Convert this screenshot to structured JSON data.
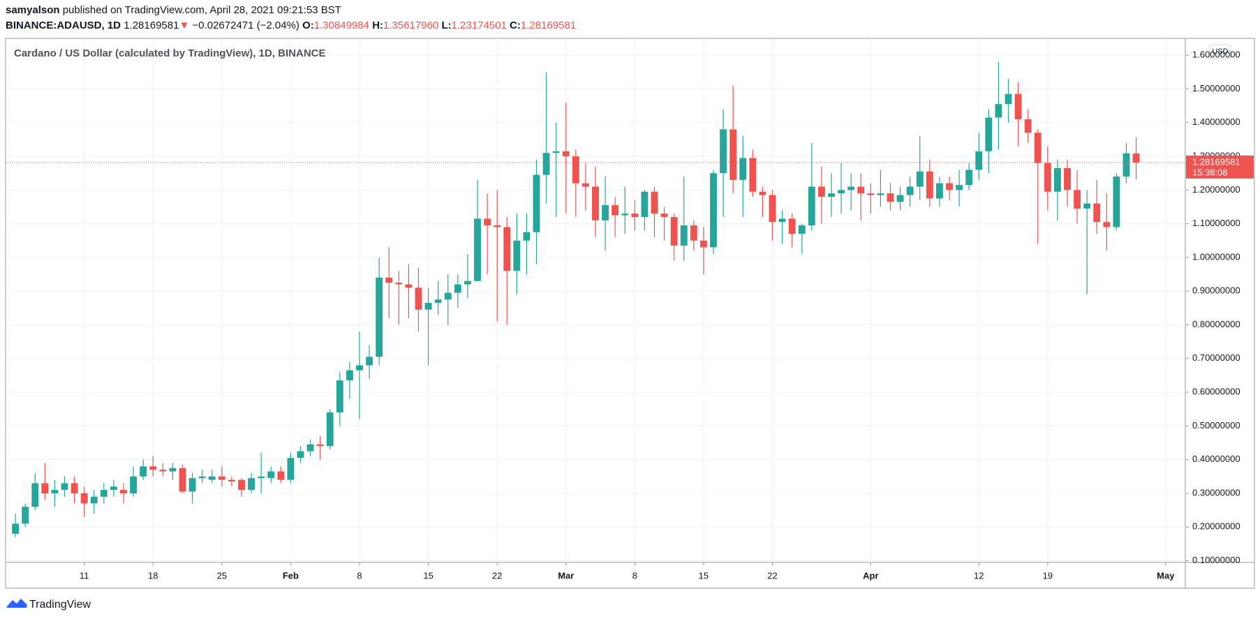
{
  "header": {
    "author": "samyalson",
    "published": "published on TradingView.com, April 28, 2021 09:21:53 BST",
    "symbol": "BINANCE:ADAUSD, 1D",
    "arrow": "▼",
    "change": "−0.02672471 (−2.04%)",
    "ohlc": [
      {
        "key": "O:",
        "value": "1.30849984"
      },
      {
        "key": "H:",
        "value": "1.35617960"
      },
      {
        "key": "L:",
        "value": "1.23174501"
      },
      {
        "key": "C:",
        "value": "1.28169581"
      }
    ]
  },
  "chart_data": {
    "type": "candlestick",
    "title": "Cardano / US Dollar (calculated by TradingView), 1D, BINANCE",
    "currency": "USD",
    "countdown": "15:38:08",
    "up_color": "#26a69a",
    "down_color": "#ef5350",
    "grid": true,
    "x": [
      "2021-01-04",
      "2021-01-05",
      "2021-01-06",
      "2021-01-07",
      "2021-01-08",
      "2021-01-09",
      "2021-01-10",
      "2021-01-11",
      "2021-01-12",
      "2021-01-13",
      "2021-01-14",
      "2021-01-15",
      "2021-01-16",
      "2021-01-17",
      "2021-01-18",
      "2021-01-19",
      "2021-01-20",
      "2021-01-21",
      "2021-01-22",
      "2021-01-23",
      "2021-01-24",
      "2021-01-25",
      "2021-01-26",
      "2021-01-27",
      "2021-01-28",
      "2021-01-29",
      "2021-01-30",
      "2021-01-31",
      "2021-02-01",
      "2021-02-02",
      "2021-02-03",
      "2021-02-04",
      "2021-02-05",
      "2021-02-06",
      "2021-02-07",
      "2021-02-08",
      "2021-02-09",
      "2021-02-10",
      "2021-02-11",
      "2021-02-12",
      "2021-02-13",
      "2021-02-14",
      "2021-02-15",
      "2021-02-16",
      "2021-02-17",
      "2021-02-18",
      "2021-02-19",
      "2021-02-20",
      "2021-02-21",
      "2021-02-22",
      "2021-02-23",
      "2021-02-24",
      "2021-02-25",
      "2021-02-26",
      "2021-02-27",
      "2021-02-28",
      "2021-03-01",
      "2021-03-02",
      "2021-03-03",
      "2021-03-04",
      "2021-03-05",
      "2021-03-06",
      "2021-03-07",
      "2021-03-08",
      "2021-03-09",
      "2021-03-10",
      "2021-03-11",
      "2021-03-12",
      "2021-03-13",
      "2021-03-14",
      "2021-03-15",
      "2021-03-16",
      "2021-03-17",
      "2021-03-18",
      "2021-03-19",
      "2021-03-20",
      "2021-03-21",
      "2021-03-22",
      "2021-03-23",
      "2021-03-24",
      "2021-03-25",
      "2021-03-26",
      "2021-03-27",
      "2021-03-28",
      "2021-03-29",
      "2021-03-30",
      "2021-03-31",
      "2021-04-01",
      "2021-04-02",
      "2021-04-03",
      "2021-04-04",
      "2021-04-05",
      "2021-04-06",
      "2021-04-07",
      "2021-04-08",
      "2021-04-09",
      "2021-04-10",
      "2021-04-11",
      "2021-04-12",
      "2021-04-13",
      "2021-04-14",
      "2021-04-15",
      "2021-04-16",
      "2021-04-17",
      "2021-04-18",
      "2021-04-19",
      "2021-04-20",
      "2021-04-21",
      "2021-04-22",
      "2021-04-23",
      "2021-04-24",
      "2021-04-25",
      "2021-04-26",
      "2021-04-27",
      "2021-04-28"
    ],
    "open": [
      0.18,
      0.21,
      0.26,
      0.33,
      0.3,
      0.31,
      0.33,
      0.3,
      0.27,
      0.29,
      0.31,
      0.31,
      0.3,
      0.35,
      0.38,
      0.37,
      0.365,
      0.375,
      0.305,
      0.345,
      0.34,
      0.35,
      0.34,
      0.34,
      0.31,
      0.345,
      0.345,
      0.365,
      0.34,
      0.405,
      0.425,
      0.445,
      0.44,
      0.54,
      0.635,
      0.665,
      0.68,
      0.705,
      0.94,
      0.925,
      0.92,
      0.91,
      0.845,
      0.865,
      0.875,
      0.895,
      0.92,
      0.93,
      1.115,
      1.095,
      1.09,
      0.96,
      1.05,
      1.075,
      1.245,
      1.31,
      1.315,
      1.3,
      1.22,
      1.21,
      1.11,
      1.155,
      1.125,
      1.13,
      1.12,
      1.195,
      1.13,
      1.12,
      1.035,
      1.095,
      1.05,
      1.03,
      1.25,
      1.38,
      1.23,
      1.295,
      1.195,
      1.185,
      1.105,
      1.115,
      1.07,
      1.095,
      1.21,
      1.18,
      1.19,
      1.2,
      1.21,
      1.19,
      1.185,
      1.19,
      1.165,
      1.185,
      1.21,
      1.255,
      1.175,
      1.22,
      1.2,
      1.215,
      1.26,
      1.315,
      1.415,
      1.455,
      1.485,
      1.41,
      1.37,
      1.28,
      1.195,
      1.265,
      1.2,
      1.145,
      1.16,
      1.105,
      1.09,
      1.24,
      1.30849984
    ],
    "high": [
      0.24,
      0.27,
      0.36,
      0.39,
      0.34,
      0.35,
      0.35,
      0.32,
      0.31,
      0.33,
      0.34,
      0.33,
      0.38,
      0.4,
      0.41,
      0.39,
      0.39,
      0.385,
      0.36,
      0.37,
      0.37,
      0.38,
      0.35,
      0.345,
      0.36,
      0.42,
      0.38,
      0.38,
      0.42,
      0.44,
      0.46,
      0.47,
      0.55,
      0.66,
      0.69,
      0.78,
      0.74,
      1.0,
      1.03,
      0.96,
      0.98,
      0.97,
      0.91,
      0.93,
      0.95,
      0.95,
      1.01,
      1.23,
      1.19,
      1.2,
      1.12,
      1.13,
      1.13,
      1.29,
      1.55,
      1.4,
      1.46,
      1.32,
      1.28,
      1.27,
      1.24,
      1.18,
      1.21,
      1.17,
      1.2,
      1.21,
      1.15,
      1.13,
      1.24,
      1.11,
      1.09,
      1.26,
      1.44,
      1.51,
      1.36,
      1.32,
      1.21,
      1.2,
      1.14,
      1.13,
      1.1,
      1.34,
      1.27,
      1.25,
      1.28,
      1.25,
      1.25,
      1.22,
      1.26,
      1.22,
      1.21,
      1.24,
      1.36,
      1.29,
      1.24,
      1.24,
      1.26,
      1.28,
      1.37,
      1.44,
      1.58,
      1.53,
      1.52,
      1.44,
      1.38,
      1.33,
      1.29,
      1.29,
      1.26,
      1.2,
      1.23,
      1.19,
      1.25,
      1.34,
      1.3561796
    ],
    "low": [
      0.17,
      0.2,
      0.25,
      0.28,
      0.26,
      0.29,
      0.27,
      0.23,
      0.24,
      0.27,
      0.29,
      0.27,
      0.29,
      0.34,
      0.35,
      0.35,
      0.34,
      0.3,
      0.27,
      0.33,
      0.33,
      0.32,
      0.32,
      0.29,
      0.3,
      0.3,
      0.33,
      0.33,
      0.33,
      0.39,
      0.41,
      0.4,
      0.43,
      0.5,
      0.58,
      0.52,
      0.64,
      0.68,
      0.82,
      0.8,
      0.82,
      0.78,
      0.68,
      0.83,
      0.8,
      0.85,
      0.88,
      0.93,
      0.95,
      0.81,
      0.8,
      0.89,
      0.95,
      0.98,
      1.16,
      1.12,
      1.13,
      1.12,
      1.14,
      1.06,
      1.02,
      1.06,
      1.07,
      1.08,
      1.08,
      1.06,
      1.05,
      0.99,
      0.99,
      1.02,
      0.95,
      1.01,
      1.12,
      1.19,
      1.12,
      1.18,
      1.12,
      1.05,
      1.04,
      1.03,
      1.01,
      1.08,
      1.1,
      1.12,
      1.13,
      1.14,
      1.11,
      1.13,
      1.15,
      1.14,
      1.14,
      1.15,
      1.17,
      1.15,
      1.15,
      1.17,
      1.15,
      1.2,
      1.23,
      1.25,
      1.32,
      1.4,
      1.33,
      1.34,
      1.04,
      1.14,
      1.11,
      1.15,
      1.1,
      0.89,
      1.07,
      1.02,
      1.08,
      1.22,
      1.23174501
    ],
    "close": [
      0.21,
      0.26,
      0.33,
      0.3,
      0.31,
      0.33,
      0.3,
      0.27,
      0.29,
      0.31,
      0.32,
      0.3,
      0.35,
      0.38,
      0.37,
      0.365,
      0.375,
      0.305,
      0.345,
      0.35,
      0.35,
      0.34,
      0.335,
      0.31,
      0.345,
      0.35,
      0.365,
      0.34,
      0.405,
      0.425,
      0.445,
      0.44,
      0.54,
      0.635,
      0.665,
      0.68,
      0.705,
      0.94,
      0.925,
      0.92,
      0.91,
      0.845,
      0.865,
      0.875,
      0.895,
      0.92,
      0.93,
      1.115,
      1.095,
      1.09,
      0.96,
      1.05,
      1.075,
      1.245,
      1.31,
      1.315,
      1.3,
      1.22,
      1.21,
      1.11,
      1.155,
      1.125,
      1.13,
      1.12,
      1.195,
      1.13,
      1.12,
      1.035,
      1.095,
      1.05,
      1.03,
      1.25,
      1.38,
      1.23,
      1.295,
      1.195,
      1.185,
      1.105,
      1.115,
      1.07,
      1.095,
      1.21,
      1.18,
      1.19,
      1.2,
      1.21,
      1.19,
      1.185,
      1.19,
      1.165,
      1.185,
      1.21,
      1.255,
      1.175,
      1.22,
      1.2,
      1.215,
      1.26,
      1.315,
      1.415,
      1.455,
      1.485,
      1.41,
      1.37,
      1.28,
      1.195,
      1.265,
      1.2,
      1.145,
      1.16,
      1.105,
      1.09,
      1.24,
      1.309,
      1.28169581
    ],
    "xlim": [
      "2021-01-03",
      "2021-05-03"
    ],
    "xticks": [
      {
        "value": "2021-01-11",
        "label": "11"
      },
      {
        "value": "2021-01-18",
        "label": "18"
      },
      {
        "value": "2021-01-25",
        "label": "25"
      },
      {
        "value": "2021-02-01",
        "label": "Feb"
      },
      {
        "value": "2021-02-08",
        "label": "8"
      },
      {
        "value": "2021-02-15",
        "label": "15"
      },
      {
        "value": "2021-02-22",
        "label": "22"
      },
      {
        "value": "2021-03-01",
        "label": "Mar"
      },
      {
        "value": "2021-03-08",
        "label": "8"
      },
      {
        "value": "2021-03-15",
        "label": "15"
      },
      {
        "value": "2021-03-22",
        "label": "22"
      },
      {
        "value": "2021-04-01",
        "label": "Apr"
      },
      {
        "value": "2021-04-12",
        "label": "12"
      },
      {
        "value": "2021-04-19",
        "label": "19"
      },
      {
        "value": "2021-05-01",
        "label": "May"
      }
    ],
    "ylim": [
      0.095,
      1.65
    ],
    "yticks": [
      {
        "value": 0.1,
        "label": "0.10000000"
      },
      {
        "value": 0.2,
        "label": "0.20000000"
      },
      {
        "value": 0.3,
        "label": "0.30000000"
      },
      {
        "value": 0.4,
        "label": "0.40000000"
      },
      {
        "value": 0.5,
        "label": "0.50000000"
      },
      {
        "value": 0.6,
        "label": "0.60000000"
      },
      {
        "value": 0.7,
        "label": "0.70000000"
      },
      {
        "value": 0.8,
        "label": "0.80000000"
      },
      {
        "value": 0.9,
        "label": "0.90000000"
      },
      {
        "value": 1.0,
        "label": "1.00000000"
      },
      {
        "value": 1.1,
        "label": "1.10000000"
      },
      {
        "value": 1.2,
        "label": "1.20000000"
      },
      {
        "value": 1.3,
        "label": "1.30000000"
      },
      {
        "value": 1.4,
        "label": "1.40000000"
      },
      {
        "value": 1.5,
        "label": "1.50000000"
      },
      {
        "value": 1.6,
        "label": "1.60000000"
      }
    ]
  },
  "footer": {
    "brand": "TradingView"
  }
}
